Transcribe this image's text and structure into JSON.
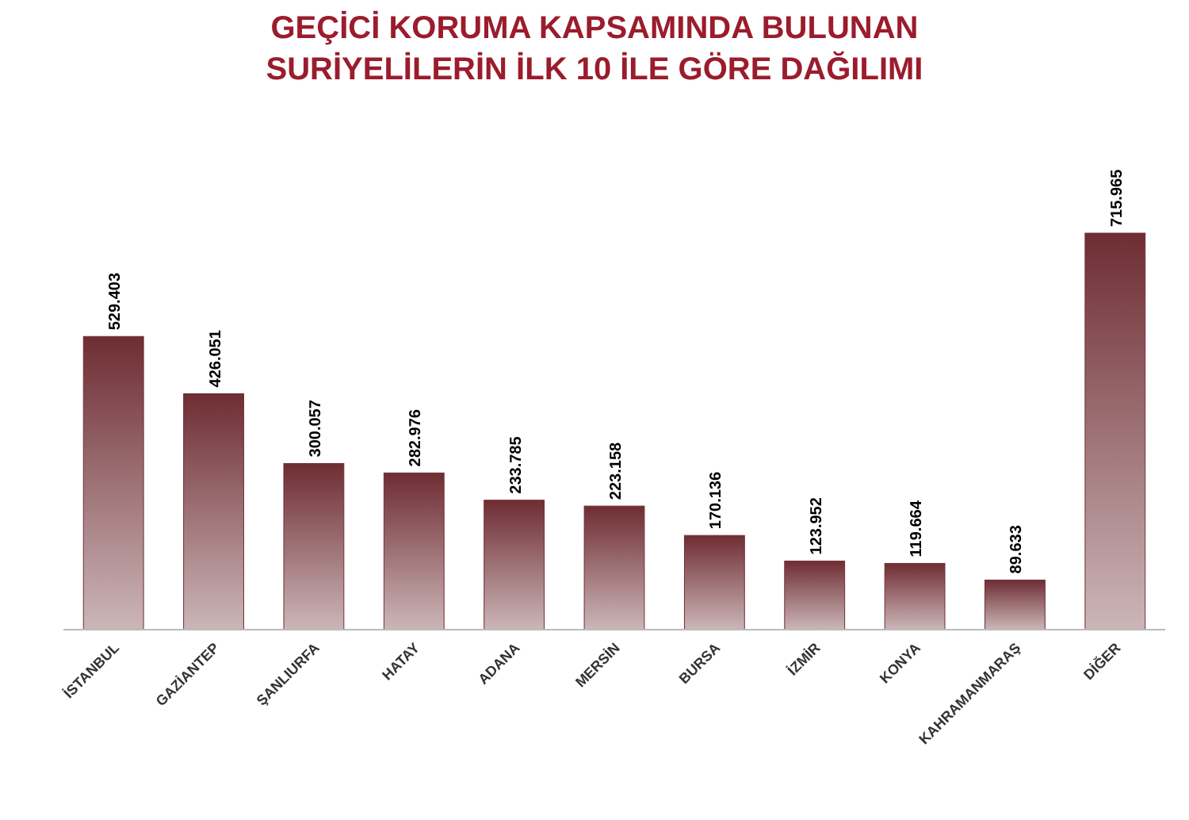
{
  "chart_data": {
    "type": "bar",
    "title": "GEÇİCİ KORUMA KAPSAMINDA BULUNAN SURİYELİLERİN İLK 10 İLE GÖRE DAĞILIMI",
    "categories": [
      "İSTANBUL",
      "GAZİANTEP",
      "ŞANLIURFA",
      "HATAY",
      "ADANA",
      "MERSİN",
      "BURSA",
      "İZMİR",
      "KONYA",
      "KAHRAMANMARAŞ",
      "DİĞER"
    ],
    "values": [
      529403,
      426051,
      300057,
      282976,
      233785,
      223158,
      170136,
      123952,
      119664,
      89633,
      715965
    ],
    "value_labels": [
      "529.403",
      "426.051",
      "300.057",
      "282.976",
      "233.785",
      "223.158",
      "170.136",
      "123.952",
      "119.664",
      "89.633",
      "715.965"
    ],
    "color": "#6e2d33"
  }
}
